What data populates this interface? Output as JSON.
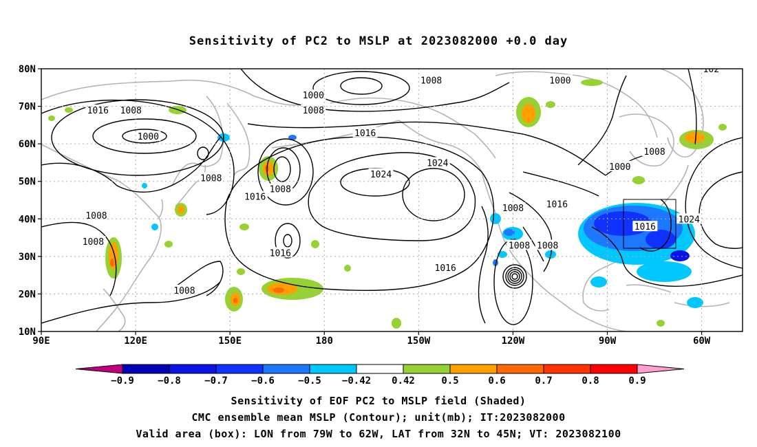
{
  "title": "Sensitivity of PC2 to MSLP at 2023082000 +0.0 day",
  "axes": {
    "lat_labels": [
      "80N",
      "70N",
      "60N",
      "50N",
      "40N",
      "30N",
      "20N",
      "10N"
    ],
    "lon_labels": [
      "90E",
      "120E",
      "150E",
      "180",
      "150W",
      "120W",
      "90W",
      "60W"
    ]
  },
  "colorbar": {
    "tick_labels": [
      "-0.9",
      "-0.8",
      "-0.7",
      "-0.6",
      "-0.5",
      "-0.42",
      "0.42",
      "0.5",
      "0.6",
      "0.7",
      "0.8",
      "0.9"
    ],
    "colors": [
      "#c0007f",
      "#0000b4",
      "#0a14e6",
      "#0f32ff",
      "#1e78ff",
      "#00c8ff",
      "#ffffff",
      "#96d232",
      "#ffa000",
      "#ff6a00",
      "#ff3200",
      "#ff0000",
      "#ff9fcd"
    ]
  },
  "contour_labels": [
    {
      "text": "1000",
      "lon": 176.5,
      "lat": 73
    },
    {
      "text": "1008",
      "lon": 176.5,
      "lat": 69
    },
    {
      "text": "1016",
      "lon": 193,
      "lat": 63
    },
    {
      "text": "1008",
      "lon": 214,
      "lat": 77
    },
    {
      "text": "1000",
      "lon": 255,
      "lat": 77
    },
    {
      "text": "1016",
      "lon": 108,
      "lat": 69
    },
    {
      "text": "1008",
      "lon": 118.5,
      "lat": 69
    },
    {
      "text": "1000",
      "lon": 124,
      "lat": 62
    },
    {
      "text": "1008",
      "lon": 144,
      "lat": 51
    },
    {
      "text": "1016",
      "lon": 158,
      "lat": 46
    },
    {
      "text": "1008",
      "lon": 166,
      "lat": 48
    },
    {
      "text": "1024",
      "lon": 198,
      "lat": 52
    },
    {
      "text": "1024",
      "lon": 216,
      "lat": 55
    },
    {
      "text": "1008",
      "lon": 107.5,
      "lat": 41
    },
    {
      "text": "1008",
      "lon": 106.5,
      "lat": 34
    },
    {
      "text": "1016",
      "lon": 166,
      "lat": 31
    },
    {
      "text": "1008",
      "lon": 135.5,
      "lat": 21
    },
    {
      "text": "1016",
      "lon": 218.5,
      "lat": 27
    },
    {
      "text": "1008",
      "lon": 240,
      "lat": 43
    },
    {
      "text": "1016",
      "lon": 254,
      "lat": 44
    },
    {
      "text": "1008",
      "lon": 242,
      "lat": 33
    },
    {
      "text": "1008",
      "lon": 251,
      "lat": 33
    },
    {
      "text": "1000",
      "lon": 274,
      "lat": 54
    },
    {
      "text": "1008",
      "lon": 285,
      "lat": 58
    },
    {
      "text": "1016",
      "lon": 282,
      "lat": 38
    },
    {
      "text": "1024",
      "lon": 296,
      "lat": 40
    },
    {
      "text": "102",
      "lon": 303,
      "lat": 80
    }
  ],
  "valid_box": {
    "lon_west": "79W",
    "lon_east": "62W",
    "lat_south": "32N",
    "lat_north": "45N"
  },
  "captions": [
    "Sensitivity of EOF PC2 to MSLP field (Shaded)",
    "CMC ensemble mean MSLP (Contour); unit(mb); IT:2023082000",
    "Valid area (box): LON from 79W to 62W, LAT from 32N to 45N; VT: 2023082100"
  ]
}
